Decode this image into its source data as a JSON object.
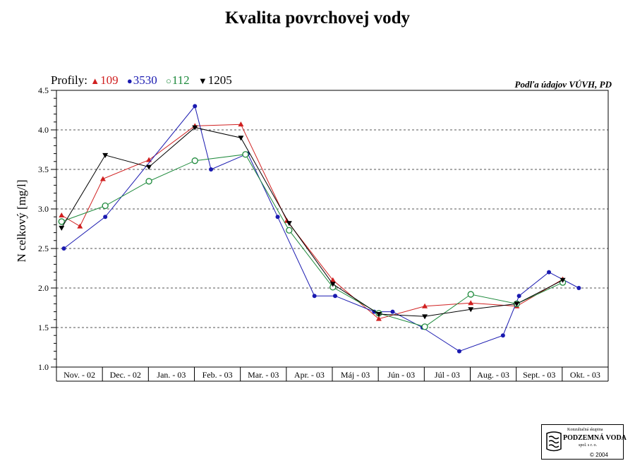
{
  "title": "Kvalita povrchovej vody",
  "source_note": "Podľa údajov VÚVH, PD",
  "legend": {
    "prefix": "Profily:",
    "items": [
      {
        "label": "109",
        "marker": "▲",
        "color": "#d02020"
      },
      {
        "label": "3530",
        "marker": "●",
        "color": "#1a1ab0"
      },
      {
        "label": "112",
        "marker": "○",
        "color": "#1e8a3c"
      },
      {
        "label": "1205",
        "marker": "▼",
        "color": "#000000"
      }
    ]
  },
  "logo": {
    "line1": "Konzultačná skupina",
    "line2": "PODZEMNÁ VODA",
    "line3": "spol. s r. o.",
    "copyright": "© 2004"
  },
  "chart_data": {
    "type": "line",
    "ylabel": "N celkový [mg/l]",
    "xlabel": "",
    "ylim": [
      1.0,
      4.5
    ],
    "yticks": [
      "1.0",
      "1.5",
      "2.0",
      "2.5",
      "3.0",
      "3.5",
      "4.0",
      "4.5"
    ],
    "grid": "horizontal dashed",
    "categories": [
      "Nov. - 02",
      "Dec. - 02",
      "Jan. - 03",
      "Feb. - 03",
      "Mar. - 03",
      "Apr. - 03",
      "Máj - 03",
      "Jún - 03",
      "Júl - 03",
      "Aug. - 03",
      "Sept. - 03",
      "Okt. - 03"
    ],
    "series": [
      {
        "name": "109",
        "color": "#d02020",
        "marker": "triangle-up",
        "points": [
          [
            0.05,
            2.92
          ],
          [
            0.45,
            2.78
          ],
          [
            0.95,
            3.38
          ],
          [
            1.95,
            3.62
          ],
          [
            2.95,
            4.05
          ],
          [
            3.95,
            4.07
          ],
          [
            4.95,
            2.85
          ],
          [
            5.95,
            2.1
          ],
          [
            6.95,
            1.61
          ],
          [
            7.95,
            1.77
          ],
          [
            8.95,
            1.81
          ],
          [
            9.95,
            1.77
          ],
          [
            10.95,
            2.11
          ]
        ]
      },
      {
        "name": "3530",
        "color": "#1a1ab0",
        "marker": "circle-filled",
        "points": [
          [
            0.1,
            2.5
          ],
          [
            1.0,
            2.9
          ],
          [
            2.95,
            4.3
          ],
          [
            3.3,
            3.5
          ],
          [
            4.1,
            3.7
          ],
          [
            4.75,
            2.9
          ],
          [
            5.55,
            1.9
          ],
          [
            6.0,
            1.9
          ],
          [
            6.85,
            1.7
          ],
          [
            7.25,
            1.7
          ],
          [
            7.9,
            1.5
          ],
          [
            8.7,
            1.2
          ],
          [
            9.65,
            1.4
          ],
          [
            10.0,
            1.9
          ],
          [
            10.65,
            2.2
          ],
          [
            11.3,
            2.0
          ]
        ]
      },
      {
        "name": "112",
        "color": "#1e8a3c",
        "marker": "circle-open",
        "points": [
          [
            0.05,
            2.84
          ],
          [
            1.0,
            3.04
          ],
          [
            1.95,
            3.35
          ],
          [
            2.95,
            3.61
          ],
          [
            4.05,
            3.69
          ],
          [
            5.0,
            2.73
          ],
          [
            5.95,
            2.01
          ],
          [
            6.95,
            1.68
          ],
          [
            7.95,
            1.51
          ],
          [
            8.95,
            1.92
          ],
          [
            9.95,
            1.8
          ],
          [
            10.95,
            2.07
          ]
        ]
      },
      {
        "name": "1205",
        "color": "#000000",
        "marker": "triangle-down",
        "points": [
          [
            0.05,
            2.76
          ],
          [
            1.0,
            3.68
          ],
          [
            1.95,
            3.53
          ],
          [
            2.95,
            4.03
          ],
          [
            3.95,
            3.9
          ],
          [
            5.0,
            2.82
          ],
          [
            5.95,
            2.05
          ],
          [
            6.95,
            1.67
          ],
          [
            7.95,
            1.64
          ],
          [
            8.95,
            1.73
          ],
          [
            9.95,
            1.8
          ],
          [
            10.95,
            2.1
          ]
        ]
      }
    ]
  }
}
